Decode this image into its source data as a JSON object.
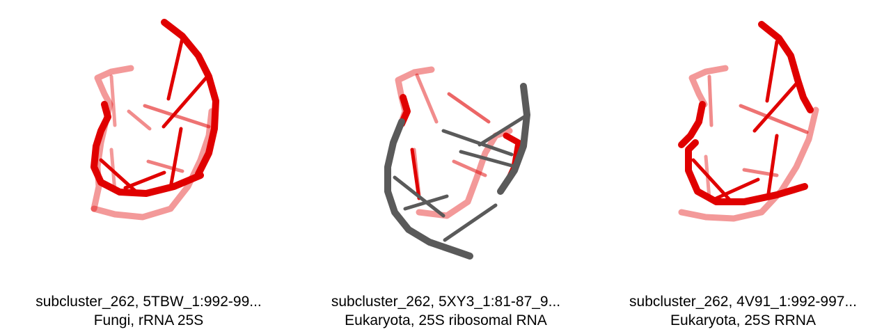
{
  "panels": [
    {
      "title": "subcluster_262, 5TBW_1:992-99...",
      "subtitle": "Fungi, rRNA 25S",
      "structure_colors": [
        "#e00000"
      ]
    },
    {
      "title": "subcluster_262, 5XY3_1:81-87_9...",
      "subtitle": "Eukaryota, 25S ribosomal RNA",
      "structure_colors": [
        "#e00000",
        "#5a5a5a"
      ]
    },
    {
      "title": "subcluster_262, 4V91_1:992-997...",
      "subtitle": "Eukaryota, 25S RRNA",
      "structure_colors": [
        "#e00000"
      ]
    }
  ]
}
